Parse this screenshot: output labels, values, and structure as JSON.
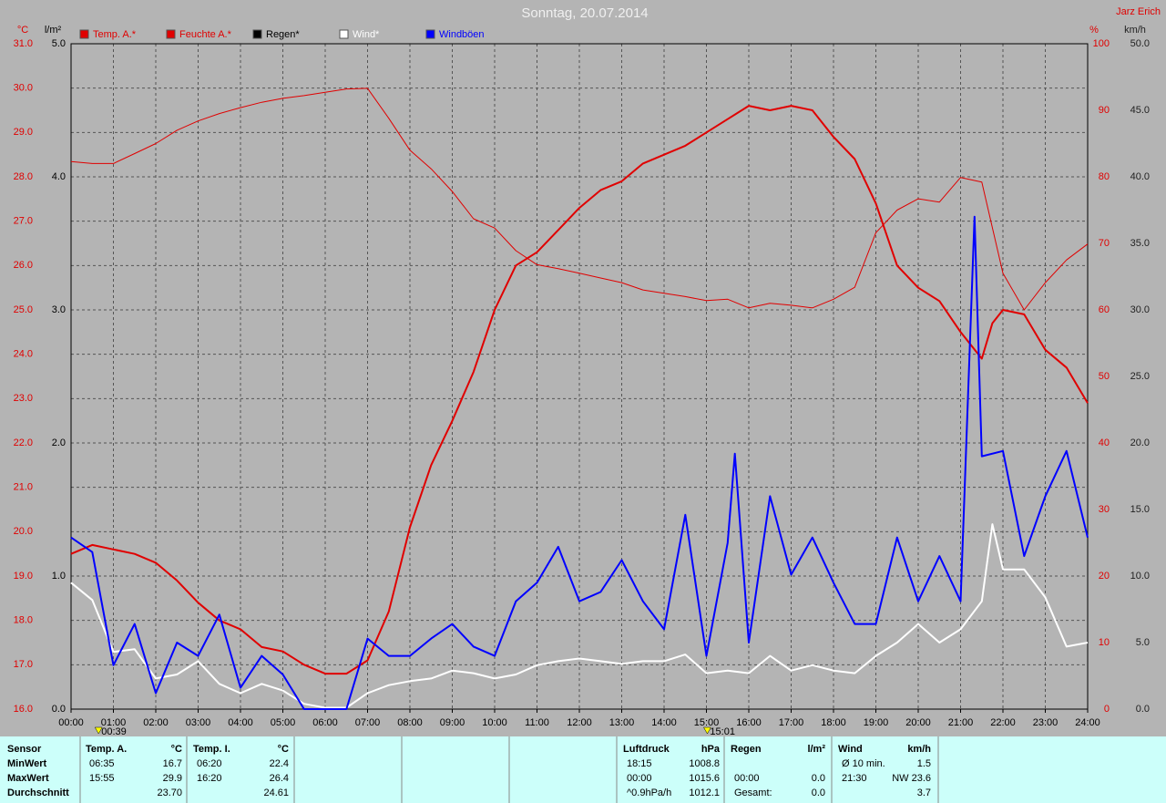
{
  "header": {
    "title": "Sonntag, 20.07.2014",
    "author": "Jarz Erich"
  },
  "chart_data": {
    "type": "line",
    "y_unit": "°C",
    "y2_unit": "%",
    "y3_unit": "l/m²",
    "y4_unit": "km/h",
    "xlim": [
      0,
      24
    ],
    "xticks": [
      {
        "value": 0,
        "label": "00:00"
      },
      {
        "value": 1,
        "label": "01:00"
      },
      {
        "value": 2,
        "label": "02:00"
      },
      {
        "value": 3,
        "label": "03:00"
      },
      {
        "value": 4,
        "label": "04:00"
      },
      {
        "value": 5,
        "label": "05:00"
      },
      {
        "value": 6,
        "label": "06:00"
      },
      {
        "value": 7,
        "label": "07:00"
      },
      {
        "value": 8,
        "label": "08:00"
      },
      {
        "value": 9,
        "label": "09:00"
      },
      {
        "value": 10,
        "label": "10:00"
      },
      {
        "value": 11,
        "label": "11:00"
      },
      {
        "value": 12,
        "label": "12:00"
      },
      {
        "value": 13,
        "label": "13:00"
      },
      {
        "value": 14,
        "label": "14:00"
      },
      {
        "value": 15,
        "label": "15:00"
      },
      {
        "value": 16,
        "label": "16:00"
      },
      {
        "value": 17,
        "label": "17:00"
      },
      {
        "value": 18,
        "label": "18:00"
      },
      {
        "value": 19,
        "label": "19:00"
      },
      {
        "value": 20,
        "label": "20:00"
      },
      {
        "value": 21,
        "label": "21:00"
      },
      {
        "value": 22,
        "label": "22:00"
      },
      {
        "value": 23,
        "label": "23:00"
      },
      {
        "value": 24,
        "label": "24:00"
      }
    ],
    "ylim": [
      16,
      31
    ],
    "yticks": [
      {
        "value": 16,
        "label": "16.0"
      },
      {
        "value": 17,
        "label": "17.0"
      },
      {
        "value": 18,
        "label": "18.0"
      },
      {
        "value": 19,
        "label": "19.0"
      },
      {
        "value": 20,
        "label": "20.0"
      },
      {
        "value": 21,
        "label": "21.0"
      },
      {
        "value": 22,
        "label": "22.0"
      },
      {
        "value": 23,
        "label": "23.0"
      },
      {
        "value": 24,
        "label": "24.0"
      },
      {
        "value": 25,
        "label": "25.0"
      },
      {
        "value": 26,
        "label": "26.0"
      },
      {
        "value": 27,
        "label": "27.0"
      },
      {
        "value": 28,
        "label": "28.0"
      },
      {
        "value": 29,
        "label": "29.0"
      },
      {
        "value": 30,
        "label": "30.0"
      },
      {
        "value": 31,
        "label": "31.0"
      }
    ],
    "y2lim": [
      0,
      100
    ],
    "y2ticks": [
      0,
      10,
      20,
      30,
      40,
      50,
      60,
      70,
      80,
      90,
      100
    ],
    "y3lim": [
      0,
      5
    ],
    "y3ticks": [
      {
        "value": 0,
        "label": "0.0"
      },
      {
        "value": 1,
        "label": "1.0"
      },
      {
        "value": 2,
        "label": "2.0"
      },
      {
        "value": 3,
        "label": "3.0"
      },
      {
        "value": 4,
        "label": "4.0"
      },
      {
        "value": 5,
        "label": "5.0"
      }
    ],
    "y4lim": [
      0,
      50
    ],
    "y4ticks": [
      {
        "value": 0,
        "label": "0.0"
      },
      {
        "value": 5,
        "label": "5.0"
      },
      {
        "value": 10,
        "label": "10.0"
      },
      {
        "value": 15,
        "label": "15.0"
      },
      {
        "value": 20,
        "label": "20.0"
      },
      {
        "value": 25,
        "label": "25.0"
      },
      {
        "value": 30,
        "label": "30.0"
      },
      {
        "value": 35,
        "label": "35.0"
      },
      {
        "value": 40,
        "label": "40.0"
      },
      {
        "value": 45,
        "label": "45.0"
      },
      {
        "value": 50,
        "label": "50.0"
      }
    ],
    "grid": true,
    "annotations": [
      {
        "x": 0.65,
        "label": "00:39"
      },
      {
        "x": 15.02,
        "label": "15:01"
      }
    ],
    "series": [
      {
        "name": "Temp. A.*",
        "color": "#e00000",
        "axis": "y",
        "width": 2,
        "x": [
          0,
          0.5,
          1,
          1.5,
          2,
          2.5,
          3,
          3.5,
          4,
          4.5,
          5,
          5.5,
          6,
          6.5,
          7,
          7.5,
          8,
          8.5,
          9,
          9.5,
          10,
          10.5,
          11,
          11.5,
          12,
          12.5,
          13,
          13.5,
          14,
          14.5,
          15,
          15.5,
          16,
          16.5,
          17,
          17.5,
          18,
          18.5,
          19,
          19.5,
          20,
          20.5,
          21,
          21.5,
          21.75,
          22,
          22.5,
          23,
          23.5,
          24
        ],
        "values": [
          19.5,
          19.7,
          19.6,
          19.5,
          19.3,
          18.9,
          18.4,
          18.0,
          17.8,
          17.4,
          17.3,
          17.0,
          16.8,
          16.8,
          17.1,
          18.2,
          20.1,
          21.5,
          22.5,
          23.6,
          25.0,
          26.0,
          26.3,
          26.8,
          27.3,
          27.7,
          27.9,
          28.3,
          28.5,
          28.7,
          29.0,
          29.3,
          29.6,
          29.5,
          29.6,
          29.5,
          28.9,
          28.4,
          27.4,
          26.0,
          25.5,
          25.2,
          24.5,
          23.9,
          24.7,
          25.0,
          24.9,
          24.1,
          23.7,
          22.9
        ]
      },
      {
        "name": "Feuchte A.*",
        "color": "#e00000",
        "axis": "y2",
        "width": 1,
        "x": [
          0,
          0.5,
          1,
          1.5,
          2,
          2.5,
          3,
          3.5,
          4,
          4.5,
          5,
          5.5,
          6,
          6.5,
          7,
          7.5,
          8,
          8.5,
          9,
          9.5,
          10,
          10.5,
          11,
          11.5,
          12,
          12.5,
          13,
          13.5,
          14,
          14.5,
          15,
          15.5,
          16,
          16.5,
          17,
          17.5,
          18,
          18.5,
          19,
          19.5,
          20,
          20.5,
          21,
          21.5,
          22,
          22.5,
          23,
          23.5,
          24
        ],
        "values": [
          82.3,
          82,
          82,
          83.5,
          85,
          87,
          88.4,
          89.5,
          90.4,
          91.2,
          91.8,
          92.2,
          92.7,
          93.2,
          93.3,
          88.8,
          84,
          81.2,
          77.8,
          73.7,
          72.3,
          68.9,
          66.8,
          66.2,
          65.5,
          64.8,
          64.1,
          63,
          62.5,
          62,
          61.4,
          61.6,
          60.3,
          61,
          60.7,
          60.3,
          61.6,
          63.4,
          71.6,
          75,
          76.7,
          76.2,
          79.9,
          79.2,
          65.5,
          60,
          64.1,
          67.5,
          69.9
        ]
      },
      {
        "name": "Regen*",
        "color": "#000000",
        "axis": "y3",
        "width": 1,
        "x": [
          0,
          24
        ],
        "values": [
          0,
          0
        ]
      },
      {
        "name": "Wind*",
        "color": "#ffffff",
        "axis": "y4",
        "width": 2,
        "x": [
          0,
          0.5,
          1,
          1.5,
          2,
          2.5,
          3,
          3.5,
          4,
          4.5,
          5,
          5.5,
          6,
          6.5,
          7,
          7.5,
          8,
          8.5,
          9,
          9.5,
          10,
          10.5,
          11,
          11.5,
          12,
          12.5,
          13,
          13.5,
          14,
          14.5,
          15,
          15.5,
          16,
          16.5,
          17,
          17.5,
          18,
          18.5,
          19,
          19.5,
          20,
          20.5,
          21,
          21.5,
          21.75,
          22,
          22.5,
          23,
          23.5,
          24
        ],
        "values": [
          9.5,
          8.2,
          4.3,
          4.5,
          2.3,
          2.6,
          3.6,
          1.9,
          1.2,
          1.9,
          1.4,
          0.4,
          0.1,
          0.1,
          1.2,
          1.8,
          2.1,
          2.3,
          2.9,
          2.7,
          2.3,
          2.6,
          3.3,
          3.6,
          3.8,
          3.6,
          3.4,
          3.6,
          3.6,
          4.1,
          2.7,
          2.9,
          2.7,
          4.0,
          2.9,
          3.3,
          2.9,
          2.7,
          4.0,
          5.0,
          6.4,
          5.0,
          6.0,
          8.1,
          13.9,
          10.5,
          10.5,
          8.4,
          4.7,
          5.0
        ]
      },
      {
        "name": "Windböen",
        "color": "#0000ff",
        "axis": "y4",
        "width": 2,
        "x": [
          0,
          0.5,
          1,
          1.5,
          2,
          2.5,
          3,
          3.5,
          4,
          4.5,
          5,
          5.5,
          6,
          6.5,
          7,
          7.5,
          8,
          8.5,
          9,
          9.5,
          10,
          10.5,
          11,
          11.5,
          12,
          12.5,
          13,
          13.5,
          14,
          14.5,
          15,
          15.5,
          15.67,
          16,
          16.5,
          17,
          17.5,
          18,
          18.5,
          19,
          19.5,
          20,
          20.5,
          21,
          21.33,
          21.5,
          22,
          22.5,
          23,
          23.5,
          24
        ],
        "values": [
          12.9,
          11.8,
          3.3,
          6.4,
          1.2,
          5.0,
          4.0,
          7.1,
          1.6,
          4.0,
          2.6,
          0,
          0,
          0,
          5.3,
          4.0,
          4.0,
          5.3,
          6.4,
          4.7,
          4.0,
          8.1,
          9.5,
          12.2,
          8.1,
          8.8,
          11.2,
          8.1,
          6.0,
          14.6,
          4.0,
          12.5,
          19.2,
          5.0,
          16.0,
          10.1,
          12.9,
          9.5,
          6.4,
          6.4,
          12.9,
          8.1,
          11.5,
          8.1,
          37,
          19.0,
          19.4,
          11.5,
          16.0,
          19.4,
          12.9
        ]
      }
    ]
  },
  "table": {
    "labels": [
      "Sensor",
      "MinWert",
      "MaxWert",
      "Durchschnitt"
    ],
    "blocks": [
      {
        "header": [
          "Temp. A.",
          "°C"
        ],
        "rows": [
          [
            "06:35",
            "16.7"
          ],
          [
            "15:55",
            "29.9"
          ],
          [
            "23.70"
          ]
        ]
      },
      {
        "header": [
          "Temp. I.",
          "°C"
        ],
        "rows": [
          [
            "06:20",
            "22.4"
          ],
          [
            "16:20",
            "26.4"
          ],
          [
            "24.61"
          ]
        ]
      },
      {
        "header": [
          "Luftdruck",
          "hPa"
        ],
        "rows": [
          [
            "18:15",
            "1008.8"
          ],
          [
            "00:00",
            "1015.6"
          ],
          [
            "^0.9hPa/h",
            "1012.1"
          ]
        ]
      },
      {
        "header": [
          "Regen",
          "l/m²"
        ],
        "rows": [
          null,
          [
            "00:00",
            "0.0"
          ],
          [
            "Gesamt:",
            "0.0"
          ]
        ]
      },
      {
        "header": [
          "Wind",
          "km/h"
        ],
        "rows": [
          [
            "Ø 10 min.",
            "1.5"
          ],
          [
            "21:30",
            "NW 23.6"
          ],
          [
            "3.7"
          ]
        ]
      }
    ]
  }
}
